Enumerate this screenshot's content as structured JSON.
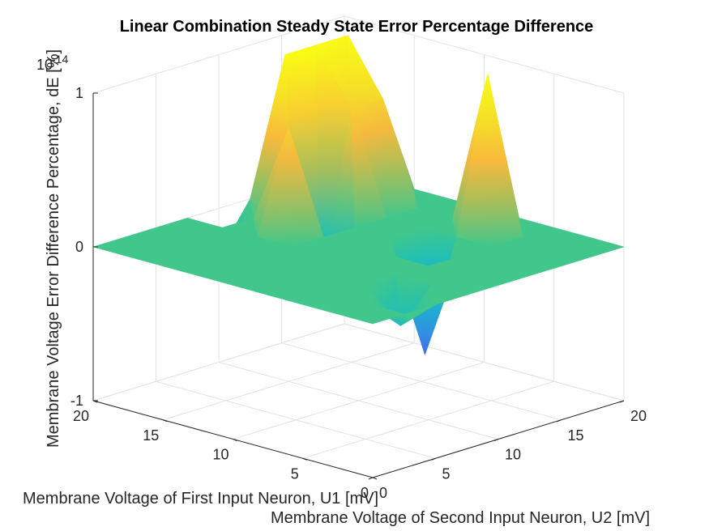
{
  "chart_data": {
    "type": "surface",
    "title": "Linear Combination Steady State Error Percentage Difference",
    "xlabel": "Membrane Voltage of First Input Neuron, U1 [mV]",
    "ylabel": "Membrane Voltage of Second Input Neuron, U2 [mV]",
    "zlabel": "Membrane Voltage Error Difference Percentage, dE [%]",
    "z_exponent_label": "10",
    "z_exponent_power": "-14",
    "xlim": [
      0,
      20
    ],
    "ylim": [
      0,
      20
    ],
    "zlim": [
      -1,
      1
    ],
    "z_scale": 1e-14,
    "x_ticks": [
      0,
      5,
      10,
      15,
      20
    ],
    "y_ticks": [
      0,
      5,
      10,
      15,
      20
    ],
    "z_ticks": [
      -1,
      0,
      1
    ],
    "x_tick_labels": [
      "0",
      "5",
      "10",
      "15",
      "20"
    ],
    "y_tick_labels": [
      "0",
      "5",
      "10",
      "15",
      "20"
    ],
    "z_tick_labels": [
      "-1",
      "0",
      "1"
    ],
    "grid": true,
    "colormap": [
      "#3e26a8",
      "#4760f1",
      "#2f96e0",
      "#12bbc8",
      "#41c78b",
      "#a4be5c",
      "#f8ba3c",
      "#f5e126",
      "#f9fb15"
    ],
    "x": [
      0,
      2.5,
      5,
      7.5,
      10,
      12.5,
      15,
      17.5,
      20
    ],
    "y": [
      0,
      2.5,
      5,
      7.5,
      10,
      12.5,
      15,
      17.5,
      20
    ],
    "z": [
      [
        0,
        0,
        0,
        0,
        0,
        0,
        0,
        0,
        0
      ],
      [
        0,
        0,
        -0.2,
        0,
        0,
        0,
        0,
        0,
        0
      ],
      [
        0,
        0,
        0,
        0,
        0,
        0,
        0,
        0,
        0
      ],
      [
        0,
        0,
        0,
        0,
        0,
        -0.7,
        0,
        1.0,
        0
      ],
      [
        0,
        0,
        0,
        0,
        0,
        0,
        0,
        0,
        0
      ],
      [
        0,
        0,
        0,
        0,
        0,
        0,
        0,
        0,
        0
      ],
      [
        0,
        0,
        0,
        0,
        0.65,
        -0.5,
        0.65,
        0.65,
        0
      ],
      [
        0,
        0,
        0,
        0,
        0,
        1.0,
        1.0,
        1.0,
        0
      ],
      [
        0,
        0,
        0,
        0,
        -0.3,
        0,
        0.35,
        0.35,
        0
      ]
    ]
  }
}
